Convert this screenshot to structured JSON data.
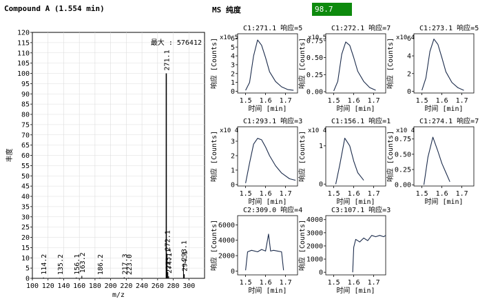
{
  "header": {
    "compound_title": "Compound A (1.554 min)",
    "ms_purity_label": "MS 纯度",
    "ms_purity_value": "98.7",
    "purity_color": "#0d8a0d"
  },
  "chart_data": [
    {
      "type": "bar",
      "title": "",
      "xlabel": "m/z",
      "ylabel": "丰度",
      "xlim": [
        100,
        320
      ],
      "ylim": [
        0,
        120
      ],
      "x_ticks": [
        100,
        120,
        140,
        160,
        180,
        200,
        220,
        240,
        260,
        280,
        300
      ],
      "y_ticks": [
        0,
        5,
        10,
        15,
        20,
        25,
        30,
        35,
        40,
        45,
        50,
        55,
        60,
        65,
        70,
        75,
        80,
        85,
        90,
        95,
        100,
        105,
        110,
        115,
        120
      ],
      "max_annotation": "最大 : 576412",
      "peaks": [
        {
          "mz": 114.2,
          "label": "114.2",
          "value": 0.4
        },
        {
          "mz": 135.2,
          "label": "135.2",
          "value": 0.3
        },
        {
          "mz": 156.1,
          "label": "156.1",
          "value": 0.4
        },
        {
          "mz": 163.2,
          "label": "163.2",
          "value": 1.2
        },
        {
          "mz": 186.2,
          "label": "186.2",
          "value": 0.3
        },
        {
          "mz": 217.3,
          "label": "217.3",
          "value": 0.5
        },
        {
          "mz": 223.0,
          "label": "223.0",
          "value": 0.3
        },
        {
          "mz": 271.1,
          "label": "271.1",
          "value": 100
        },
        {
          "mz": 272.1,
          "label": "272.1",
          "value": 12
        },
        {
          "mz": 273.1,
          "label": "273.1",
          "value": 3
        },
        {
          "mz": 274.1,
          "label": "274.1",
          "value": 1
        },
        {
          "mz": 293.1,
          "label": "293.1",
          "value": 7
        },
        {
          "mz": 294.1,
          "label": "294.1",
          "value": 2
        }
      ]
    },
    {
      "type": "line",
      "title": "C1:271.1 响应=5",
      "xlabel": "时间 [min]",
      "ylabel": "响应 [Counts]",
      "multiplier": "x10 5",
      "xlim": [
        1.46,
        1.76
      ],
      "ylim": [
        -0.2,
        6.5
      ],
      "x_ticks": [
        "1.5",
        "1.6",
        "1.7"
      ],
      "y_ticks": [
        0,
        1,
        2,
        3,
        4,
        5,
        6
      ],
      "x": [
        1.5,
        1.52,
        1.54,
        1.56,
        1.58,
        1.6,
        1.62,
        1.65,
        1.68,
        1.71,
        1.74
      ],
      "y": [
        0.1,
        1.0,
        4.0,
        5.8,
        5.2,
        3.8,
        2.2,
        1.1,
        0.5,
        0.2,
        0.1
      ]
    },
    {
      "type": "line",
      "title": "C1:272.1 响应=7",
      "xlabel": "时间 [min]",
      "ylabel": "响应 [Counts]",
      "multiplier": "x10 5",
      "xlim": [
        1.46,
        1.76
      ],
      "ylim": [
        -0.02,
        0.85
      ],
      "x_ticks": [
        "1.5",
        "1.6",
        "1.7"
      ],
      "y_ticks": [
        "0.00",
        "0.25",
        "0.50",
        "0.75"
      ],
      "x": [
        1.5,
        1.52,
        1.54,
        1.56,
        1.58,
        1.6,
        1.62,
        1.65,
        1.68,
        1.71
      ],
      "y": [
        0.01,
        0.15,
        0.55,
        0.73,
        0.68,
        0.5,
        0.3,
        0.15,
        0.06,
        0.02
      ]
    },
    {
      "type": "line",
      "title": "C1:273.1 响应=5",
      "xlabel": "时间 [min]",
      "ylabel": "响应 [Counts]",
      "multiplier": "x10 4",
      "xlim": [
        1.46,
        1.76
      ],
      "ylim": [
        -0.2,
        6.5
      ],
      "x_ticks": [
        "1.5",
        "1.6",
        "1.7"
      ],
      "y_ticks": [
        0,
        2,
        4,
        6
      ],
      "x": [
        1.5,
        1.52,
        1.54,
        1.56,
        1.58,
        1.6,
        1.62,
        1.65,
        1.68,
        1.71
      ],
      "y": [
        0.1,
        1.5,
        4.5,
        5.9,
        5.3,
        3.8,
        2.2,
        1.0,
        0.4,
        0.1
      ]
    },
    {
      "type": "line",
      "title": "C1:293.1 响应=3",
      "xlabel": "时间 [min]",
      "ylabel": "响应 [Counts]",
      "multiplier": "x10 4",
      "xlim": [
        1.46,
        1.76
      ],
      "ylim": [
        -0.1,
        4.0
      ],
      "x_ticks": [
        "1.5",
        "1.6",
        "1.7"
      ],
      "y_ticks": [
        0,
        1,
        2,
        3
      ],
      "x": [
        1.5,
        1.52,
        1.54,
        1.56,
        1.58,
        1.6,
        1.62,
        1.65,
        1.68,
        1.72,
        1.75
      ],
      "y": [
        0.1,
        1.5,
        2.8,
        3.2,
        3.1,
        2.6,
        2.0,
        1.3,
        0.8,
        0.4,
        0.3
      ]
    },
    {
      "type": "line",
      "title": "C1:156.1 响应=1",
      "xlabel": "时间 [min]",
      "ylabel": "响应 [Counts]",
      "multiplier": "x10 4",
      "xlim": [
        1.46,
        1.76
      ],
      "ylim": [
        -0.05,
        1.5
      ],
      "x_ticks": [
        "1.5",
        "1.6",
        "1.7"
      ],
      "y_ticks": [
        0,
        1
      ],
      "x": [
        1.51,
        1.53,
        1.555,
        1.58,
        1.6,
        1.62,
        1.65
      ],
      "y": [
        0.0,
        0.5,
        1.2,
        1.0,
        0.6,
        0.3,
        0.1
      ]
    },
    {
      "type": "line",
      "title": "C1:274.1 响应=7",
      "xlabel": "时间 [min]",
      "ylabel": "响应 [Counts]",
      "multiplier": "x10 4",
      "xlim": [
        1.46,
        1.76
      ],
      "ylim": [
        -0.02,
        0.95
      ],
      "x_ticks": [
        "1.5",
        "1.6",
        "1.7"
      ],
      "y_ticks": [
        "0.00",
        "0.25",
        "0.50",
        "0.75"
      ],
      "x": [
        1.51,
        1.53,
        1.555,
        1.58,
        1.6,
        1.62,
        1.64
      ],
      "y": [
        0.0,
        0.45,
        0.78,
        0.55,
        0.35,
        0.2,
        0.05
      ]
    },
    {
      "type": "line",
      "title": "C2:309.0 响应=4",
      "xlabel": "时间 [min]",
      "ylabel": "响应 [Counts]",
      "multiplier": "",
      "xlim": [
        1.46,
        1.76
      ],
      "ylim": [
        -500,
        7200
      ],
      "x_ticks": [
        "1.5",
        "1.6",
        "1.7"
      ],
      "y_ticks": [
        0,
        2000,
        4000,
        6000
      ],
      "x": [
        1.5,
        1.51,
        1.53,
        1.56,
        1.58,
        1.6,
        1.615,
        1.625,
        1.64,
        1.66,
        1.68,
        1.69
      ],
      "y": [
        100,
        2500,
        2700,
        2500,
        2800,
        2600,
        4800,
        2600,
        2700,
        2600,
        2500,
        100
      ]
    },
    {
      "type": "line",
      "title": "C3:107.1 响应=3",
      "xlabel": "时间 [min]",
      "ylabel": "响应 [Counts]",
      "multiplier": "",
      "xlim": [
        1.46,
        1.76
      ],
      "ylim": [
        -200,
        4300
      ],
      "x_ticks": [
        "1.5",
        "1.6",
        "1.7"
      ],
      "y_ticks": [
        0,
        1000,
        2000,
        3000,
        4000
      ],
      "x": [
        1.595,
        1.6,
        1.61,
        1.63,
        1.65,
        1.67,
        1.69,
        1.71,
        1.73,
        1.75,
        1.76
      ],
      "y": [
        0,
        1900,
        2500,
        2300,
        2600,
        2400,
        2800,
        2700,
        2800,
        2700,
        2800
      ]
    }
  ]
}
